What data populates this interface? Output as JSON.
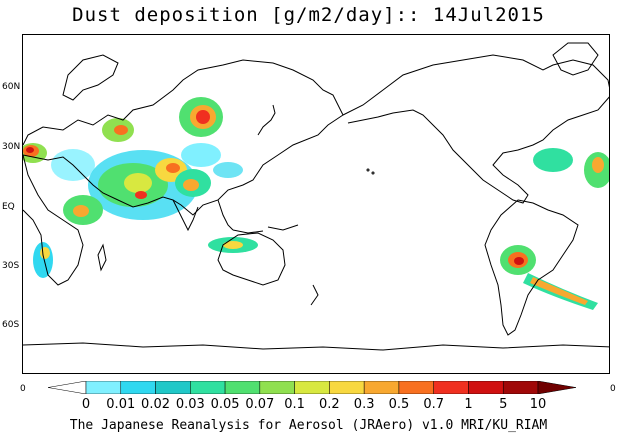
{
  "title": "Dust deposition [g/m2/day]:: 14Jul2015",
  "lat_labels": [
    "60N",
    "30N",
    "EQ",
    "30S",
    "60S"
  ],
  "colorbar": {
    "edge_left": "0",
    "edge_right": "0",
    "levels": [
      "0",
      "0.01",
      "0.02",
      "0.03",
      "0.05",
      "0.07",
      "0.1",
      "0.2",
      "0.3",
      "0.5",
      "0.7",
      "1",
      "5",
      "10"
    ],
    "colors": [
      "#ffffff",
      "#80f0ff",
      "#30d8f0",
      "#20c8c8",
      "#30e0a0",
      "#50e070",
      "#90e050",
      "#d8e840",
      "#f8d840",
      "#f8a830",
      "#f87020",
      "#f03020",
      "#d01010",
      "#a00808",
      "#700000"
    ]
  },
  "footer": "The Japanese Reanalysis for Aerosol (JRAero) v1.0 MRI/KU_RIAM"
}
